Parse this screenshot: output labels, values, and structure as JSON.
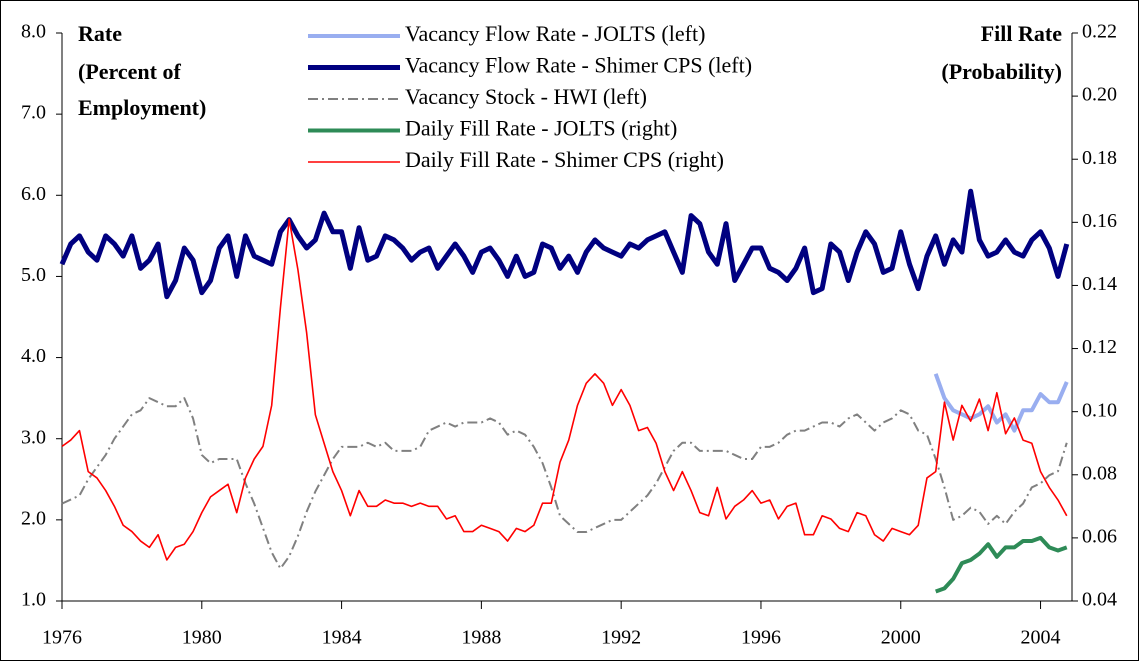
{
  "chart_data": {
    "type": "line",
    "y_label": [
      "Rate",
      "(Percent of",
      "Employment)"
    ],
    "y2_label": [
      "Fill Rate",
      "(Probability)"
    ],
    "xlim": [
      1976,
      2004.9
    ],
    "xticks": [
      1976,
      1980,
      1984,
      1988,
      1992,
      1996,
      2000,
      2004
    ],
    "ylim": [
      1,
      8
    ],
    "yticks": [
      {
        "value": 1,
        "label": "1.0"
      },
      {
        "value": 2,
        "label": "2.0"
      },
      {
        "value": 3,
        "label": "3.0"
      },
      {
        "value": 4,
        "label": "4.0"
      },
      {
        "value": 5,
        "label": "5.0"
      },
      {
        "value": 6,
        "label": "6.0"
      },
      {
        "value": 7,
        "label": "7.0"
      },
      {
        "value": 8,
        "label": "8.0"
      }
    ],
    "y2lim": [
      0.04,
      0.22
    ],
    "y2ticks": [
      {
        "value": 0.04,
        "label": "0.04"
      },
      {
        "value": 0.06,
        "label": "0.06"
      },
      {
        "value": 0.08,
        "label": "0.08"
      },
      {
        "value": 0.1,
        "label": "0.10"
      },
      {
        "value": 0.12,
        "label": "0.12"
      },
      {
        "value": 0.14,
        "label": "0.14"
      },
      {
        "value": 0.16,
        "label": "0.16"
      },
      {
        "value": 0.18,
        "label": "0.18"
      },
      {
        "value": 0.2,
        "label": "0.20"
      },
      {
        "value": 0.22,
        "label": "0.22"
      }
    ],
    "x": [
      1976,
      1976.25,
      1976.5,
      1976.75,
      1977,
      1977.25,
      1977.5,
      1977.75,
      1978,
      1978.25,
      1978.5,
      1978.75,
      1979,
      1979.25,
      1979.5,
      1979.75,
      1980,
      1980.25,
      1980.5,
      1980.75,
      1981,
      1981.25,
      1981.5,
      1981.75,
      1982,
      1982.25,
      1982.5,
      1982.75,
      1983,
      1983.25,
      1983.5,
      1983.75,
      1984,
      1984.25,
      1984.5,
      1984.75,
      1985,
      1985.25,
      1985.5,
      1985.75,
      1986,
      1986.25,
      1986.5,
      1986.75,
      1987,
      1987.25,
      1987.5,
      1987.75,
      1988,
      1988.25,
      1988.5,
      1988.75,
      1989,
      1989.25,
      1989.5,
      1989.75,
      1990,
      1990.25,
      1990.5,
      1990.75,
      1991,
      1991.25,
      1991.5,
      1991.75,
      1992,
      1992.25,
      1992.5,
      1992.75,
      1993,
      1993.25,
      1993.5,
      1993.75,
      1994,
      1994.25,
      1994.5,
      1994.75,
      1995,
      1995.25,
      1995.5,
      1995.75,
      1996,
      1996.25,
      1996.5,
      1996.75,
      1997,
      1997.25,
      1997.5,
      1997.75,
      1998,
      1998.25,
      1998.5,
      1998.75,
      1999,
      1999.25,
      1999.5,
      1999.75,
      2000,
      2000.25,
      2000.5,
      2000.75,
      2001,
      2001.25,
      2001.5,
      2001.75,
      2002,
      2002.25,
      2002.5,
      2002.75,
      2003,
      2003.25,
      2003.5,
      2003.75,
      2004,
      2004.25,
      2004.5,
      2004.75
    ],
    "series": [
      {
        "name": "Vacancy Flow Rate - JOLTS (left)",
        "color": "#99aef0",
        "line_width": 4,
        "line_style": "solid",
        "x": [
          2001,
          2001.25,
          2001.5,
          2001.75,
          2002,
          2002.25,
          2002.5,
          2002.75,
          2003,
          2003.25,
          2003.5,
          2003.75,
          2004,
          2004.25,
          2004.5,
          2004.75
        ],
        "values": [
          3.8,
          3.5,
          3.35,
          3.3,
          3.25,
          3.3,
          3.4,
          3.2,
          3.3,
          3.1,
          3.35,
          3.35,
          3.55,
          3.45,
          3.45,
          3.7
        ]
      },
      {
        "name": "Vacancy Flow Rate - Shimer CPS (left)",
        "color": "#000080",
        "line_width": 5,
        "line_style": "solid",
        "values": [
          5.15,
          5.4,
          5.5,
          5.3,
          5.2,
          5.5,
          5.4,
          5.25,
          5.5,
          5.1,
          5.2,
          5.4,
          4.75,
          4.95,
          5.35,
          5.2,
          4.8,
          4.95,
          5.35,
          5.5,
          5.0,
          5.5,
          5.25,
          5.2,
          5.15,
          5.55,
          5.7,
          5.5,
          5.35,
          5.45,
          5.78,
          5.55,
          5.55,
          5.1,
          5.6,
          5.2,
          5.25,
          5.5,
          5.45,
          5.35,
          5.2,
          5.3,
          5.35,
          5.1,
          5.25,
          5.4,
          5.25,
          5.05,
          5.3,
          5.35,
          5.2,
          5.0,
          5.25,
          5.0,
          5.05,
          5.4,
          5.35,
          5.1,
          5.25,
          5.05,
          5.3,
          5.45,
          5.35,
          5.3,
          5.25,
          5.4,
          5.35,
          5.45,
          5.5,
          5.55,
          5.3,
          5.05,
          5.75,
          5.65,
          5.3,
          5.15,
          5.65,
          4.95,
          5.15,
          5.35,
          5.35,
          5.1,
          5.05,
          4.95,
          5.1,
          5.35,
          4.8,
          4.85,
          5.4,
          5.3,
          4.95,
          5.3,
          5.55,
          5.4,
          5.05,
          5.1,
          5.55,
          5.15,
          4.85,
          5.25,
          5.5,
          5.15,
          5.45,
          5.3,
          6.05,
          5.45,
          5.25,
          5.3,
          5.45,
          5.3,
          5.25,
          5.45,
          5.55,
          5.35,
          5.0,
          5.4
        ]
      },
      {
        "name": "Vacancy Stock - HWI (left)",
        "color": "#808080",
        "line_width": 2,
        "line_style": "dashdot",
        "values": [
          2.2,
          2.25,
          2.3,
          2.5,
          2.65,
          2.8,
          3.0,
          3.15,
          3.3,
          3.35,
          3.5,
          3.45,
          3.4,
          3.4,
          3.5,
          3.25,
          2.8,
          2.7,
          2.75,
          2.75,
          2.75,
          2.45,
          2.2,
          1.9,
          1.6,
          1.4,
          1.55,
          1.8,
          2.1,
          2.35,
          2.55,
          2.75,
          2.9,
          2.9,
          2.9,
          2.95,
          2.9,
          2.95,
          2.85,
          2.85,
          2.85,
          2.9,
          3.1,
          3.15,
          3.2,
          3.15,
          3.2,
          3.2,
          3.2,
          3.25,
          3.2,
          3.05,
          3.1,
          3.05,
          2.9,
          2.7,
          2.4,
          2.05,
          1.95,
          1.85,
          1.85,
          1.9,
          1.95,
          2.0,
          2.0,
          2.1,
          2.2,
          2.3,
          2.45,
          2.65,
          2.85,
          2.95,
          2.95,
          2.85,
          2.85,
          2.85,
          2.85,
          2.8,
          2.75,
          2.75,
          2.9,
          2.9,
          2.95,
          3.05,
          3.1,
          3.1,
          3.15,
          3.2,
          3.2,
          3.15,
          3.25,
          3.3,
          3.2,
          3.1,
          3.2,
          3.25,
          3.35,
          3.3,
          3.1,
          3.05,
          2.75,
          2.4,
          2.0,
          2.05,
          2.15,
          2.1,
          1.95,
          2.05,
          1.95,
          2.1,
          2.2,
          2.4,
          2.45,
          2.55,
          2.6,
          2.95
        ]
      },
      {
        "name": "Daily Fill Rate - JOLTS (right)",
        "color": "#2e8b57",
        "line_width": 4,
        "line_style": "solid",
        "axis": "y2",
        "x": [
          2001,
          2001.25,
          2001.5,
          2001.75,
          2002,
          2002.25,
          2002.5,
          2002.75,
          2003,
          2003.25,
          2003.5,
          2003.75,
          2004,
          2004.25,
          2004.5,
          2004.75
        ],
        "values": [
          0.043,
          0.044,
          0.047,
          0.052,
          0.053,
          0.055,
          0.058,
          0.054,
          0.057,
          0.057,
          0.059,
          0.059,
          0.06,
          0.057,
          0.056,
          0.057
        ]
      },
      {
        "name": "Daily Fill Rate - Shimer CPS (right)",
        "color": "#ff0000",
        "line_width": 1.6,
        "line_style": "solid",
        "axis": "y2",
        "values": [
          0.089,
          0.091,
          0.094,
          0.081,
          0.079,
          0.075,
          0.07,
          0.064,
          0.062,
          0.059,
          0.057,
          0.061,
          0.053,
          0.057,
          0.058,
          0.062,
          0.068,
          0.073,
          0.075,
          0.077,
          0.068,
          0.079,
          0.085,
          0.089,
          0.102,
          0.133,
          0.161,
          0.145,
          0.125,
          0.099,
          0.09,
          0.081,
          0.075,
          0.067,
          0.075,
          0.07,
          0.07,
          0.072,
          0.071,
          0.071,
          0.07,
          0.071,
          0.07,
          0.07,
          0.066,
          0.067,
          0.062,
          0.062,
          0.064,
          0.063,
          0.062,
          0.059,
          0.063,
          0.062,
          0.064,
          0.071,
          0.071,
          0.084,
          0.091,
          0.102,
          0.109,
          0.112,
          0.109,
          0.102,
          0.107,
          0.102,
          0.094,
          0.095,
          0.09,
          0.081,
          0.075,
          0.081,
          0.075,
          0.068,
          0.067,
          0.076,
          0.066,
          0.07,
          0.072,
          0.075,
          0.071,
          0.072,
          0.066,
          0.07,
          0.071,
          0.061,
          0.061,
          0.067,
          0.066,
          0.063,
          0.062,
          0.068,
          0.067,
          0.061,
          0.059,
          0.063,
          0.062,
          0.061,
          0.064,
          0.079,
          0.081,
          0.103,
          0.091,
          0.102,
          0.097,
          0.104,
          0.094,
          0.106,
          0.093,
          0.098,
          0.091,
          0.09,
          0.081,
          0.076,
          0.072,
          0.067
        ]
      }
    ]
  }
}
